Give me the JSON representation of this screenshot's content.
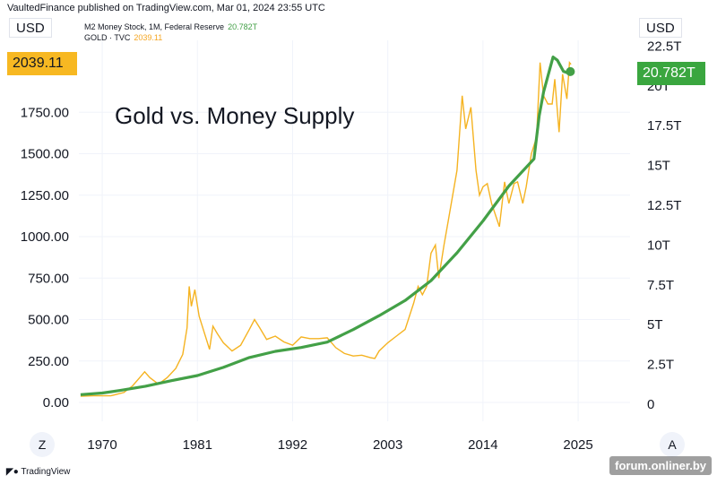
{
  "header": {
    "published_by": "VaultedFinance published on TradingView.com, Mar 01, 2024 23:55 UTC"
  },
  "units": {
    "left": "USD",
    "right": "USD"
  },
  "legend": [
    {
      "label": "M2 Money Stock, 1M, Federal Reserve",
      "value": "20.782T",
      "color": "#43a047"
    },
    {
      "label": "GOLD · TVC",
      "value": "2039.11",
      "color": "#f5a623"
    }
  ],
  "badges": {
    "gold": "2039.11",
    "m2": "20.782T"
  },
  "controls": {
    "zoom_left": "Z",
    "zoom_right": "A"
  },
  "footer": {
    "brand": "TradingView",
    "watermark": "forum.onliner.by"
  },
  "colors": {
    "gold": "#f5b321",
    "m2": "#43a047",
    "badge_gold": "#f7b822",
    "badge_m2": "#3aa63f",
    "grid": "#f0f3fa"
  },
  "chart_data": {
    "type": "line",
    "title": "Gold vs. Money Supply",
    "x_ticks": [
      "1970",
      "1981",
      "1992",
      "2003",
      "2014",
      "2025"
    ],
    "x_range": [
      1967.3,
      2031
    ],
    "left_axis": {
      "ticks": [
        "0.00",
        "250.00",
        "500.00",
        "750.00",
        "1000.00",
        "1250.00",
        "1500.00",
        "1750.00"
      ],
      "range": [
        0,
        2250
      ]
    },
    "right_axis": {
      "ticks": [
        "0",
        "2.5T",
        "5T",
        "7.5T",
        "10T",
        "12.5T",
        "15T",
        "17.5T",
        "20T",
        "22.5T"
      ],
      "range": [
        0,
        22.5
      ]
    },
    "series": [
      {
        "name": "GOLD · TVC",
        "axis": "left",
        "values": [
          [
            1967.5,
            38
          ],
          [
            1969,
            40
          ],
          [
            1971,
            40
          ],
          [
            1972.5,
            60
          ],
          [
            1973.5,
            100
          ],
          [
            1974.5,
            160
          ],
          [
            1974.9,
            185
          ],
          [
            1975.5,
            150
          ],
          [
            1976.5,
            110
          ],
          [
            1977.5,
            150
          ],
          [
            1978.5,
            205
          ],
          [
            1979.3,
            290
          ],
          [
            1979.8,
            450
          ],
          [
            1980.05,
            700
          ],
          [
            1980.3,
            580
          ],
          [
            1980.7,
            680
          ],
          [
            1981.2,
            520
          ],
          [
            1981.8,
            420
          ],
          [
            1982.4,
            320
          ],
          [
            1982.8,
            460
          ],
          [
            1983.3,
            415
          ],
          [
            1984,
            360
          ],
          [
            1985,
            310
          ],
          [
            1986,
            345
          ],
          [
            1987,
            440
          ],
          [
            1987.6,
            500
          ],
          [
            1988.2,
            450
          ],
          [
            1989,
            380
          ],
          [
            1990,
            400
          ],
          [
            1991,
            365
          ],
          [
            1992,
            345
          ],
          [
            1993,
            395
          ],
          [
            1994,
            385
          ],
          [
            1995,
            385
          ],
          [
            1996,
            390
          ],
          [
            1997,
            330
          ],
          [
            1998,
            295
          ],
          [
            1999,
            280
          ],
          [
            2000,
            285
          ],
          [
            2001,
            270
          ],
          [
            2001.5,
            265
          ],
          [
            2002,
            310
          ],
          [
            2003,
            360
          ],
          [
            2004,
            400
          ],
          [
            2005,
            440
          ],
          [
            2006,
            600
          ],
          [
            2006.5,
            700
          ],
          [
            2007,
            650
          ],
          [
            2007.5,
            700
          ],
          [
            2008,
            900
          ],
          [
            2008.5,
            950
          ],
          [
            2008.9,
            750
          ],
          [
            2009.5,
            950
          ],
          [
            2010,
            1100
          ],
          [
            2010.5,
            1250
          ],
          [
            2011,
            1400
          ],
          [
            2011.6,
            1850
          ],
          [
            2012,
            1650
          ],
          [
            2012.6,
            1780
          ],
          [
            2013.2,
            1400
          ],
          [
            2013.6,
            1250
          ],
          [
            2014,
            1300
          ],
          [
            2014.5,
            1320
          ],
          [
            2015,
            1200
          ],
          [
            2015.9,
            1060
          ],
          [
            2016.5,
            1330
          ],
          [
            2017,
            1200
          ],
          [
            2017.6,
            1320
          ],
          [
            2018,
            1330
          ],
          [
            2018.6,
            1200
          ],
          [
            2019,
            1300
          ],
          [
            2019.6,
            1500
          ],
          [
            2020.2,
            1600
          ],
          [
            2020.6,
            2050
          ],
          [
            2021,
            1850
          ],
          [
            2021.5,
            1800
          ],
          [
            2022,
            1800
          ],
          [
            2022.3,
            1950
          ],
          [
            2022.8,
            1630
          ],
          [
            2023.2,
            1980
          ],
          [
            2023.7,
            1830
          ],
          [
            2024,
            2050
          ],
          [
            2024.17,
            2039
          ]
        ]
      },
      {
        "name": "M2 Money Stock, 1M, Federal Reserve",
        "axis": "right",
        "values": [
          [
            1967.5,
            0.49
          ],
          [
            1970,
            0.59
          ],
          [
            1972,
            0.75
          ],
          [
            1975,
            1.02
          ],
          [
            1978,
            1.37
          ],
          [
            1981,
            1.69
          ],
          [
            1984,
            2.2
          ],
          [
            1987,
            2.82
          ],
          [
            1990,
            3.21
          ],
          [
            1993,
            3.45
          ],
          [
            1996,
            3.79
          ],
          [
            1999,
            4.58
          ],
          [
            2002,
            5.45
          ],
          [
            2005,
            6.4
          ],
          [
            2008,
            7.65
          ],
          [
            2011,
            9.4
          ],
          [
            2014,
            11.4
          ],
          [
            2017,
            13.6
          ],
          [
            2019.9,
            15.3
          ],
          [
            2020.5,
            18.0
          ],
          [
            2021,
            19.5
          ],
          [
            2022.1,
            21.7
          ],
          [
            2022.6,
            21.5
          ],
          [
            2023.3,
            20.8
          ],
          [
            2023.8,
            20.7
          ],
          [
            2024.1,
            20.78
          ]
        ]
      }
    ]
  }
}
